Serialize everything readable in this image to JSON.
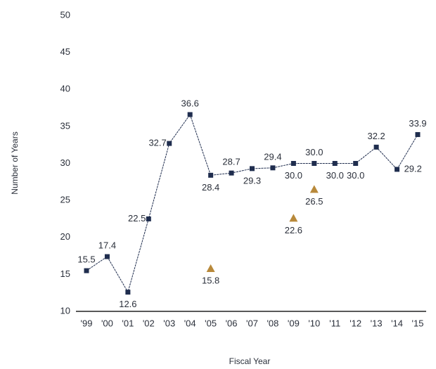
{
  "chart_data": {
    "type": "line",
    "x_label": "Fiscal Year",
    "y_label": "Number of Years",
    "categories": [
      "'99",
      "'00",
      "'01",
      "'02",
      "'03",
      "'04",
      "'05",
      "'06",
      "'07",
      "'08",
      "'09",
      "'10",
      "'11",
      "'12",
      "'13",
      "'14",
      "'15"
    ],
    "series": [
      {
        "color": "#1f2d4e",
        "marker": "square",
        "line": true,
        "values": [
          15.5,
          17.4,
          12.6,
          22.5,
          32.7,
          36.6,
          28.4,
          28.7,
          29.3,
          29.4,
          30.0,
          30.0,
          30.0,
          30.0,
          32.2,
          29.2,
          33.9
        ],
        "value_labels": [
          "15.5",
          "17.4",
          "12.6",
          "22.5",
          "32.7",
          "36.6",
          "28.4",
          "28.7",
          "29.3",
          "29.4",
          "30.0",
          "30.0",
          "30.0",
          "30.0",
          "32.2",
          "29.2",
          "33.9"
        ]
      },
      {
        "color": "#b8893a",
        "marker": "triangle",
        "line": false,
        "values": [
          null,
          null,
          null,
          null,
          null,
          null,
          15.8,
          null,
          null,
          null,
          22.6,
          26.5,
          null,
          null,
          null,
          null,
          null
        ],
        "value_labels": [
          null,
          null,
          null,
          null,
          null,
          null,
          "15.8",
          null,
          null,
          null,
          "22.6",
          "26.5",
          null,
          null,
          null,
          null,
          null
        ]
      }
    ],
    "ylim": [
      10,
      50
    ],
    "yticks": [
      10,
      15,
      20,
      25,
      30,
      35,
      40,
      45,
      50
    ],
    "grid": false
  }
}
